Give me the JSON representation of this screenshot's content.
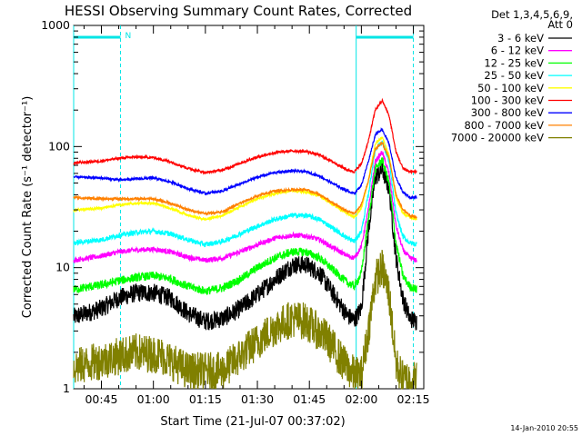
{
  "chart_data": {
    "type": "line",
    "title": "HESSI Observing Summary Count Rates, Corrected",
    "xlabel": "Start Time (21-Jul-07 00:37:02)",
    "ylabel": "Corrected Count Rate (s⁻¹ detector⁻¹)",
    "y_scale": "log",
    "ylim": [
      1,
      1000
    ],
    "y_ticks": [
      {
        "value": 1,
        "label": "1"
      },
      {
        "value": 10,
        "label": "10"
      },
      {
        "value": 100,
        "label": "100"
      },
      {
        "value": 1000,
        "label": "1000"
      }
    ],
    "xlim_minutes": [
      37,
      138
    ],
    "x_ticks": [
      {
        "minute": 45,
        "label": "00:45"
      },
      {
        "minute": 60,
        "label": "01:00"
      },
      {
        "minute": 75,
        "label": "01:15"
      },
      {
        "minute": 90,
        "label": "01:30"
      },
      {
        "minute": 105,
        "label": "01:45"
      },
      {
        "minute": 120,
        "label": "02:00"
      },
      {
        "minute": 135,
        "label": "02:15"
      }
    ],
    "grid": false,
    "legend_position": "right",
    "legend_header": [
      "Det 1,3,4,5,6,9,",
      "Att 0"
    ],
    "top_annotation": "N",
    "night_markers_minutes": [
      37,
      50.5,
      118.5,
      135
    ],
    "series": [
      {
        "name": "3 - 6 keV",
        "color": "#000000",
        "noise": 0.22,
        "points": [
          [
            37,
            3.9
          ],
          [
            45,
            4.6
          ],
          [
            50,
            5.6
          ],
          [
            55,
            6.2
          ],
          [
            60,
            6.2
          ],
          [
            65,
            5.6
          ],
          [
            70,
            4.2
          ],
          [
            75,
            3.6
          ],
          [
            80,
            3.8
          ],
          [
            85,
            4.6
          ],
          [
            90,
            6.0
          ],
          [
            95,
            8.0
          ],
          [
            100,
            10.5
          ],
          [
            104,
            10.6
          ],
          [
            108,
            9.0
          ],
          [
            112,
            6.0
          ],
          [
            116,
            4.0
          ],
          [
            118,
            3.7
          ],
          [
            120,
            4.6
          ],
          [
            122,
            20
          ],
          [
            124,
            55
          ],
          [
            126,
            65
          ],
          [
            128,
            45
          ],
          [
            130,
            12
          ],
          [
            132,
            5.5
          ],
          [
            134,
            3.8
          ],
          [
            136,
            3.6
          ]
        ]
      },
      {
        "name": "6 - 12 keV",
        "color": "#ff00ff",
        "noise": 0.06,
        "points": [
          [
            37,
            11.5
          ],
          [
            45,
            12.5
          ],
          [
            50,
            13.5
          ],
          [
            55,
            14.0
          ],
          [
            60,
            14.2
          ],
          [
            65,
            13.5
          ],
          [
            70,
            12.2
          ],
          [
            75,
            11.5
          ],
          [
            80,
            12.0
          ],
          [
            85,
            13.5
          ],
          [
            90,
            15.5
          ],
          [
            95,
            17.5
          ],
          [
            100,
            18.5
          ],
          [
            104,
            18.3
          ],
          [
            108,
            17.0
          ],
          [
            112,
            14.5
          ],
          [
            116,
            12.5
          ],
          [
            118,
            12.0
          ],
          [
            120,
            15.0
          ],
          [
            122,
            30
          ],
          [
            124,
            75
          ],
          [
            126,
            90
          ],
          [
            128,
            60
          ],
          [
            130,
            22
          ],
          [
            132,
            14
          ],
          [
            134,
            12
          ],
          [
            136,
            11.5
          ]
        ]
      },
      {
        "name": "12 - 25 keV",
        "color": "#00ff00",
        "noise": 0.1,
        "points": [
          [
            37,
            6.6
          ],
          [
            45,
            7.2
          ],
          [
            50,
            7.8
          ],
          [
            55,
            8.3
          ],
          [
            60,
            8.6
          ],
          [
            65,
            8.1
          ],
          [
            70,
            7.0
          ],
          [
            75,
            6.4
          ],
          [
            80,
            6.8
          ],
          [
            85,
            8.0
          ],
          [
            90,
            10.0
          ],
          [
            95,
            12.0
          ],
          [
            100,
            13.5
          ],
          [
            104,
            13.5
          ],
          [
            108,
            12.0
          ],
          [
            112,
            9.5
          ],
          [
            116,
            7.5
          ],
          [
            118,
            7.0
          ],
          [
            120,
            9.0
          ],
          [
            122,
            25
          ],
          [
            124,
            65
          ],
          [
            126,
            78
          ],
          [
            128,
            50
          ],
          [
            130,
            16
          ],
          [
            132,
            8.5
          ],
          [
            134,
            7.0
          ],
          [
            136,
            6.6
          ]
        ]
      },
      {
        "name": "25 - 50 keV",
        "color": "#00ffff",
        "noise": 0.06,
        "points": [
          [
            37,
            16
          ],
          [
            45,
            17
          ],
          [
            50,
            18.5
          ],
          [
            55,
            19.5
          ],
          [
            60,
            20
          ],
          [
            65,
            19
          ],
          [
            70,
            17
          ],
          [
            75,
            15.5
          ],
          [
            80,
            16.5
          ],
          [
            85,
            19
          ],
          [
            90,
            22
          ],
          [
            95,
            25
          ],
          [
            100,
            27
          ],
          [
            104,
            27
          ],
          [
            108,
            25
          ],
          [
            112,
            21
          ],
          [
            116,
            17.5
          ],
          [
            118,
            16.5
          ],
          [
            120,
            20
          ],
          [
            122,
            40
          ],
          [
            124,
            95
          ],
          [
            126,
            110
          ],
          [
            128,
            75
          ],
          [
            130,
            28
          ],
          [
            132,
            18
          ],
          [
            134,
            16
          ],
          [
            136,
            15.5
          ]
        ]
      },
      {
        "name": "50 - 100 keV",
        "color": "#ffff00",
        "noise": 0.03,
        "points": [
          [
            37,
            30
          ],
          [
            45,
            31
          ],
          [
            50,
            33
          ],
          [
            55,
            34
          ],
          [
            60,
            34
          ],
          [
            65,
            31
          ],
          [
            70,
            27
          ],
          [
            75,
            25
          ],
          [
            80,
            27
          ],
          [
            85,
            32
          ],
          [
            90,
            37
          ],
          [
            95,
            41
          ],
          [
            100,
            43
          ],
          [
            104,
            42
          ],
          [
            108,
            39
          ],
          [
            112,
            33
          ],
          [
            116,
            28
          ],
          [
            118,
            26
          ],
          [
            120,
            31
          ],
          [
            122,
            52
          ],
          [
            124,
            105
          ],
          [
            126,
            120
          ],
          [
            128,
            85
          ],
          [
            130,
            38
          ],
          [
            132,
            28
          ],
          [
            134,
            26
          ],
          [
            136,
            25
          ]
        ]
      },
      {
        "name": "100 - 300 keV",
        "color": "#ff0000",
        "noise": 0.03,
        "points": [
          [
            37,
            73
          ],
          [
            45,
            76
          ],
          [
            50,
            80
          ],
          [
            55,
            82
          ],
          [
            60,
            81
          ],
          [
            65,
            75
          ],
          [
            70,
            66
          ],
          [
            75,
            61
          ],
          [
            80,
            64
          ],
          [
            85,
            73
          ],
          [
            90,
            82
          ],
          [
            95,
            89
          ],
          [
            100,
            92
          ],
          [
            104,
            91
          ],
          [
            108,
            85
          ],
          [
            112,
            74
          ],
          [
            116,
            64
          ],
          [
            118,
            62
          ],
          [
            120,
            72
          ],
          [
            122,
            110
          ],
          [
            124,
            200
          ],
          [
            126,
            240
          ],
          [
            128,
            180
          ],
          [
            130,
            90
          ],
          [
            132,
            66
          ],
          [
            134,
            62
          ],
          [
            136,
            62
          ]
        ]
      },
      {
        "name": "300 - 800 keV",
        "color": "#0000ff",
        "noise": 0.03,
        "points": [
          [
            37,
            56
          ],
          [
            45,
            55
          ],
          [
            50,
            53
          ],
          [
            55,
            54
          ],
          [
            60,
            55
          ],
          [
            65,
            51
          ],
          [
            70,
            45
          ],
          [
            75,
            41
          ],
          [
            80,
            43
          ],
          [
            85,
            49
          ],
          [
            90,
            56
          ],
          [
            95,
            61
          ],
          [
            100,
            63
          ],
          [
            104,
            62
          ],
          [
            108,
            57
          ],
          [
            112,
            49
          ],
          [
            116,
            43
          ],
          [
            118,
            41
          ],
          [
            120,
            48
          ],
          [
            122,
            75
          ],
          [
            124,
            125
          ],
          [
            126,
            140
          ],
          [
            128,
            105
          ],
          [
            130,
            55
          ],
          [
            132,
            42
          ],
          [
            134,
            38
          ],
          [
            136,
            38
          ]
        ]
      },
      {
        "name": "800 - 7000 keV",
        "color": "#ff8000",
        "noise": 0.03,
        "points": [
          [
            37,
            38
          ],
          [
            45,
            37
          ],
          [
            50,
            37
          ],
          [
            55,
            37
          ],
          [
            60,
            37
          ],
          [
            65,
            34
          ],
          [
            70,
            30
          ],
          [
            75,
            28
          ],
          [
            80,
            29
          ],
          [
            85,
            34
          ],
          [
            90,
            39
          ],
          [
            95,
            43
          ],
          [
            100,
            44
          ],
          [
            104,
            44
          ],
          [
            108,
            40
          ],
          [
            112,
            34
          ],
          [
            116,
            29
          ],
          [
            118,
            28
          ],
          [
            120,
            33
          ],
          [
            122,
            52
          ],
          [
            124,
            95
          ],
          [
            126,
            108
          ],
          [
            128,
            80
          ],
          [
            130,
            40
          ],
          [
            132,
            30
          ],
          [
            134,
            27
          ],
          [
            136,
            26
          ]
        ]
      },
      {
        "name": "7000 - 20000 keV",
        "color": "#808000",
        "noise": 0.45,
        "points": [
          [
            37,
            1.5
          ],
          [
            48,
            1.8
          ],
          [
            55,
            2.0
          ],
          [
            62,
            1.9
          ],
          [
            70,
            1.4
          ],
          [
            80,
            1.4
          ],
          [
            88,
            2.2
          ],
          [
            95,
            3.2
          ],
          [
            100,
            3.8
          ],
          [
            104,
            3.6
          ],
          [
            110,
            2.6
          ],
          [
            115,
            1.6
          ],
          [
            118,
            1.3
          ],
          [
            120,
            1.3
          ],
          [
            122,
            3
          ],
          [
            124,
            8
          ],
          [
            126,
            10
          ],
          [
            128,
            6
          ],
          [
            130,
            1.6
          ],
          [
            132,
            1.2
          ],
          [
            134,
            1.2
          ],
          [
            136,
            1.2
          ]
        ]
      }
    ]
  },
  "timestamp": "14-Jan-2010 20:55"
}
